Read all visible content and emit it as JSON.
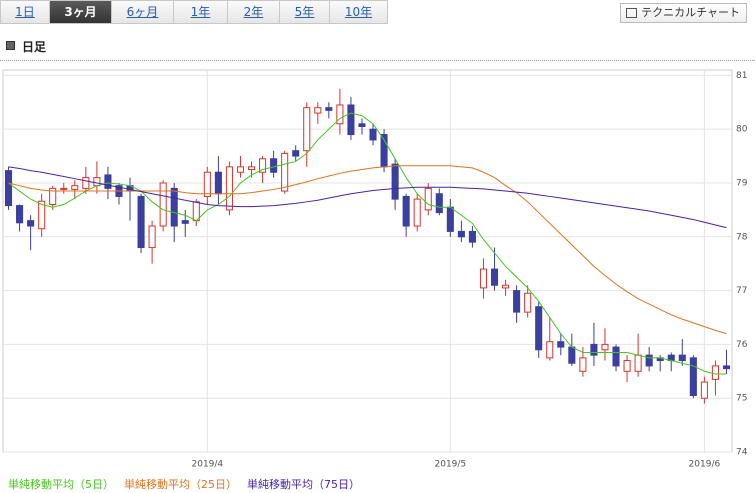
{
  "tabs": [
    {
      "label": "1日",
      "active": false
    },
    {
      "label": "3ヶ月",
      "active": true
    },
    {
      "label": "6ヶ月",
      "active": false
    },
    {
      "label": "1年",
      "active": false
    },
    {
      "label": "2年",
      "active": false
    },
    {
      "label": "5年",
      "active": false
    },
    {
      "label": "10年",
      "active": false
    }
  ],
  "button": "テクニカルチャート",
  "heading": "日足",
  "chart_data": {
    "type": "candlestick",
    "categories": [
      null,
      null,
      null,
      null,
      null,
      null,
      null,
      null,
      null,
      null,
      null,
      null,
      null,
      null,
      null,
      null,
      null,
      null,
      "2019/4",
      null,
      null,
      null,
      null,
      null,
      null,
      null,
      null,
      null,
      null,
      null,
      null,
      null,
      null,
      null,
      null,
      null,
      null,
      null,
      null,
      null,
      "2019/5",
      null,
      null,
      null,
      null,
      null,
      null,
      null,
      null,
      null,
      null,
      null,
      null,
      null,
      null,
      null,
      null,
      null,
      null,
      null,
      null,
      null,
      null,
      "2019/6",
      null,
      null
    ],
    "open": [
      79.23,
      78.58,
      78.3,
      78.15,
      78.6,
      78.88,
      78.88,
      78.9,
      78.95,
      79.15,
      78.95,
      78.95,
      78.75,
      77.8,
      78.2,
      78.9,
      78.3,
      78.3,
      78.75,
      79.2,
      78.5,
      79.2,
      79.25,
      79.2,
      79.45,
      78.85,
      79.6,
      79.6,
      80.3,
      80.4,
      80.1,
      80.45,
      80.1,
      80.0,
      79.9,
      79.35,
      78.75,
      78.2,
      78.5,
      78.8,
      78.55,
      78.1,
      78.1,
      77.05,
      77.4,
      77.05,
      77.0,
      76.6,
      76.7,
      75.75,
      76.05,
      75.95,
      75.5,
      76.0,
      75.9,
      75.95,
      75.5,
      75.5,
      75.8,
      75.75,
      75.8,
      75.8,
      75.75,
      75.0,
      75.35,
      75.6
    ],
    "high": [
      79.3,
      78.6,
      78.4,
      78.8,
      78.95,
      79.0,
      79.05,
      79.3,
      79.4,
      79.3,
      79.0,
      79.1,
      78.8,
      78.3,
      79.05,
      79.0,
      78.5,
      78.7,
      79.3,
      79.5,
      79.4,
      79.5,
      79.4,
      79.5,
      79.6,
      79.6,
      79.7,
      80.5,
      80.5,
      80.5,
      80.75,
      80.6,
      80.2,
      80.1,
      80.0,
      79.45,
      78.8,
      78.8,
      79.0,
      78.9,
      78.7,
      78.3,
      78.2,
      77.6,
      77.8,
      77.2,
      77.1,
      77.1,
      76.8,
      76.5,
      76.2,
      76.2,
      75.95,
      76.4,
      76.3,
      76.0,
      75.8,
      76.2,
      75.95,
      75.8,
      75.85,
      76.1,
      75.8,
      75.4,
      75.7,
      75.9
    ],
    "low": [
      78.5,
      78.1,
      77.75,
      78.0,
      78.5,
      78.8,
      78.7,
      78.8,
      78.8,
      78.7,
      78.6,
      78.3,
      77.7,
      77.5,
      78.1,
      77.9,
      78.0,
      78.2,
      78.6,
      78.6,
      78.4,
      79.1,
      79.1,
      79.0,
      79.1,
      78.8,
      79.4,
      79.3,
      80.1,
      80.2,
      79.9,
      79.8,
      79.9,
      79.7,
      79.2,
      78.5,
      78.0,
      78.1,
      78.4,
      78.4,
      78.0,
      77.9,
      77.8,
      76.85,
      77.0,
      76.9,
      76.4,
      76.5,
      75.75,
      75.7,
      75.8,
      75.6,
      75.4,
      75.6,
      75.7,
      75.5,
      75.3,
      75.4,
      75.5,
      75.5,
      75.5,
      75.6,
      75.0,
      74.9,
      75.05,
      75.45
    ],
    "close": [
      78.58,
      78.26,
      78.2,
      78.66,
      78.9,
      78.9,
      78.95,
      79.1,
      79.1,
      78.9,
      78.75,
      78.85,
      77.8,
      78.2,
      79.0,
      78.2,
      78.25,
      78.65,
      79.2,
      78.8,
      79.3,
      79.3,
      79.3,
      79.45,
      79.2,
      79.55,
      79.5,
      80.4,
      80.4,
      80.35,
      80.45,
      79.9,
      80.05,
      79.8,
      79.3,
      78.7,
      78.2,
      78.7,
      78.9,
      78.45,
      78.1,
      78.0,
      77.9,
      77.4,
      77.1,
      77.1,
      76.6,
      76.95,
      75.9,
      76.05,
      75.95,
      75.65,
      75.75,
      75.8,
      76.0,
      75.6,
      75.7,
      75.8,
      75.6,
      75.7,
      75.7,
      75.7,
      75.05,
      75.3,
      75.6,
      75.55
    ],
    "up_color": "#d9342b",
    "down_color": "#3b3f9e",
    "series": [
      {
        "name": "単純移動平均（5日）",
        "color": "#44c61f",
        "values": [
          79.0,
          78.85,
          78.7,
          78.6,
          78.55,
          78.6,
          78.72,
          78.85,
          78.95,
          79.0,
          78.98,
          78.95,
          78.85,
          78.65,
          78.5,
          78.45,
          78.4,
          78.3,
          78.5,
          78.6,
          78.75,
          79.0,
          79.15,
          79.25,
          79.3,
          79.35,
          79.4,
          79.55,
          79.8,
          80.0,
          80.2,
          80.3,
          80.25,
          80.1,
          79.8,
          79.45,
          79.1,
          78.8,
          78.6,
          78.55,
          78.55,
          78.4,
          78.25,
          77.95,
          77.7,
          77.45,
          77.25,
          77.05,
          76.8,
          76.5,
          76.2,
          75.95,
          75.85,
          75.85,
          75.85,
          75.85,
          75.85,
          75.8,
          75.75,
          75.75,
          75.7,
          75.65,
          75.6,
          75.5,
          75.45,
          75.45
        ]
      },
      {
        "name": "単純移動平均（25日）",
        "color": "#e0731f",
        "values": [
          79.0,
          78.95,
          78.9,
          78.87,
          78.85,
          78.85,
          78.85,
          78.85,
          78.85,
          78.85,
          78.85,
          78.85,
          78.85,
          78.85,
          78.85,
          78.85,
          78.82,
          78.8,
          78.8,
          78.8,
          78.8,
          78.8,
          78.82,
          78.85,
          78.88,
          78.92,
          78.97,
          79.02,
          79.08,
          79.13,
          79.18,
          79.22,
          79.25,
          79.28,
          79.3,
          79.32,
          79.32,
          79.32,
          79.32,
          79.32,
          79.32,
          79.3,
          79.28,
          79.2,
          79.1,
          78.95,
          78.82,
          78.65,
          78.45,
          78.25,
          78.05,
          77.85,
          77.65,
          77.45,
          77.28,
          77.12,
          76.98,
          76.85,
          76.75,
          76.65,
          76.55,
          76.47,
          76.4,
          76.33,
          76.26,
          76.2
        ]
      },
      {
        "name": "単純移動平均（75日）",
        "color": "#4b1fa8",
        "values": [
          79.3,
          79.27,
          79.23,
          79.2,
          79.16,
          79.12,
          79.08,
          79.04,
          79.0,
          78.96,
          78.92,
          78.88,
          78.84,
          78.8,
          78.76,
          78.72,
          78.68,
          78.64,
          78.6,
          78.58,
          78.57,
          78.56,
          78.56,
          78.57,
          78.58,
          78.6,
          78.62,
          78.65,
          78.68,
          78.72,
          78.76,
          78.8,
          78.83,
          78.86,
          78.88,
          78.9,
          78.91,
          78.92,
          78.92,
          78.92,
          78.92,
          78.91,
          78.9,
          78.89,
          78.87,
          78.85,
          78.83,
          78.81,
          78.78,
          78.75,
          78.72,
          78.69,
          78.66,
          78.63,
          78.6,
          78.57,
          78.54,
          78.51,
          78.48,
          78.44,
          78.4,
          78.36,
          78.32,
          78.27,
          78.22,
          78.17
        ]
      }
    ],
    "ylim": [
      74,
      81.1
    ],
    "yticks": [
      74,
      75,
      76,
      77,
      78,
      79,
      80,
      81
    ],
    "grid": true
  }
}
